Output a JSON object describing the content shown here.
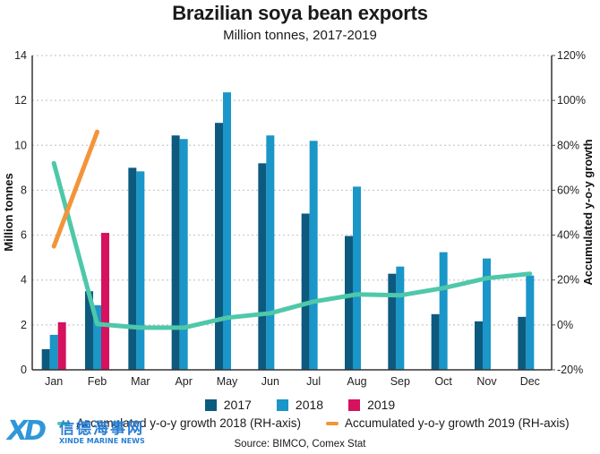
{
  "chart_data": {
    "type": "bar",
    "title": "Brazilian soya bean exports",
    "subtitle": "Million tonnes, 2017-2019",
    "xlabel": "",
    "ylabel": "Million tonnes",
    "y2label": "Accumulated y-o-y growth",
    "categories": [
      "Jan",
      "Feb",
      "Mar",
      "Apr",
      "May",
      "Jun",
      "Jul",
      "Aug",
      "Sep",
      "Oct",
      "Nov",
      "Dec"
    ],
    "ylim": [
      0,
      14
    ],
    "yticks": [
      0,
      2,
      4,
      6,
      8,
      10,
      12,
      14
    ],
    "y2lim": [
      -20,
      120
    ],
    "y2ticks": [
      -20,
      0,
      20,
      40,
      60,
      80,
      100,
      120
    ],
    "y2tick_suffix": "%",
    "grid": true,
    "legend_position": "bottom",
    "series": [
      {
        "name": "2017",
        "type": "bar",
        "axis": "left",
        "color": "#0d5a7f",
        "values": [
          0.92,
          3.5,
          9.0,
          10.44,
          11.0,
          9.2,
          6.96,
          5.96,
          4.28,
          2.48,
          2.16,
          2.36
        ]
      },
      {
        "name": "2018",
        "type": "bar",
        "axis": "left",
        "color": "#1a96c8",
        "values": [
          1.56,
          2.88,
          8.84,
          10.28,
          12.36,
          10.44,
          10.2,
          8.16,
          4.6,
          5.24,
          4.96,
          4.2
        ]
      },
      {
        "name": "2019",
        "type": "bar",
        "axis": "left",
        "color": "#d6115e",
        "values": [
          2.12,
          6.1,
          null,
          null,
          null,
          null,
          null,
          null,
          null,
          null,
          null,
          null
        ]
      },
      {
        "name": "Accumulated y-o-y growth 2018 (RH-axis)",
        "type": "line",
        "axis": "right",
        "color": "#4ec8a9",
        "values": [
          72,
          0.4,
          -1.2,
          -1.2,
          3.2,
          5.2,
          10.4,
          13.6,
          13.2,
          16.4,
          20.8,
          22.8
        ]
      },
      {
        "name": "Accumulated y-o-y growth 2019 (RH-axis)",
        "type": "line",
        "axis": "right",
        "color": "#f3943a",
        "values": [
          35,
          86,
          null,
          null,
          null,
          null,
          null,
          null,
          null,
          null,
          null,
          null
        ]
      }
    ],
    "source": "Source: BIMCO, Comex Stat"
  },
  "legend": {
    "bars": [
      {
        "label": "2017",
        "color": "#0d5a7f"
      },
      {
        "label": "2018",
        "color": "#1a96c8"
      },
      {
        "label": "2019",
        "color": "#d6115e"
      }
    ],
    "lines": [
      {
        "label": "Accumulated y-o-y growth 2018 (RH-axis)",
        "color": "#4ec8a9"
      },
      {
        "label": "Accumulated y-o-y growth 2019 (RH-axis)",
        "color": "#f3943a"
      }
    ]
  },
  "watermark": {
    "logo": "XD",
    "name_cn": "信德海事网",
    "name_en": "XINDE MARINE NEWS"
  }
}
